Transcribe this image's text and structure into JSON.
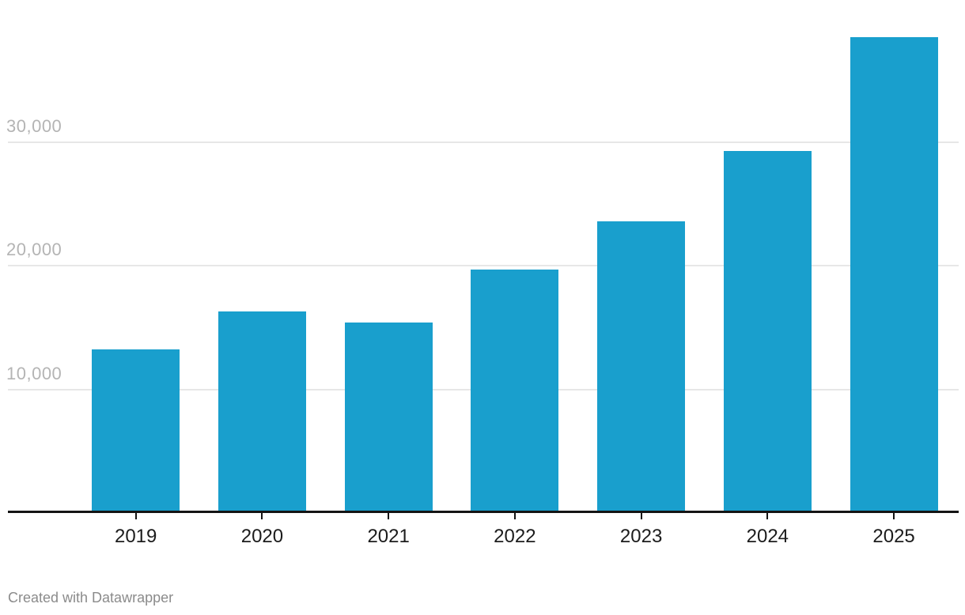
{
  "chart_data": {
    "type": "bar",
    "categories": [
      "2019",
      "2020",
      "2021",
      "2022",
      "2023",
      "2024",
      "2025"
    ],
    "values": [
      13100,
      16200,
      15300,
      19600,
      23500,
      29200,
      38400
    ],
    "title": "",
    "xlabel": "",
    "ylabel": "",
    "ylim": [
      0,
      41500
    ],
    "yticks": [
      10000,
      20000,
      30000
    ],
    "ytick_labels": [
      "10,000",
      "20,000",
      "30,000"
    ],
    "grid": true,
    "legend": false,
    "bar_color": "#199fcd"
  },
  "colors": {
    "bar": "#199fcd",
    "gridline": "#e7e7e7",
    "axis_line": "#141414",
    "y_label_text": "#b4b4b4",
    "x_label_text": "#1c1c1c",
    "footer_text": "#8b8b8b",
    "background": "#ffffff"
  },
  "footer": {
    "attribution": "Created with Datawrapper"
  }
}
